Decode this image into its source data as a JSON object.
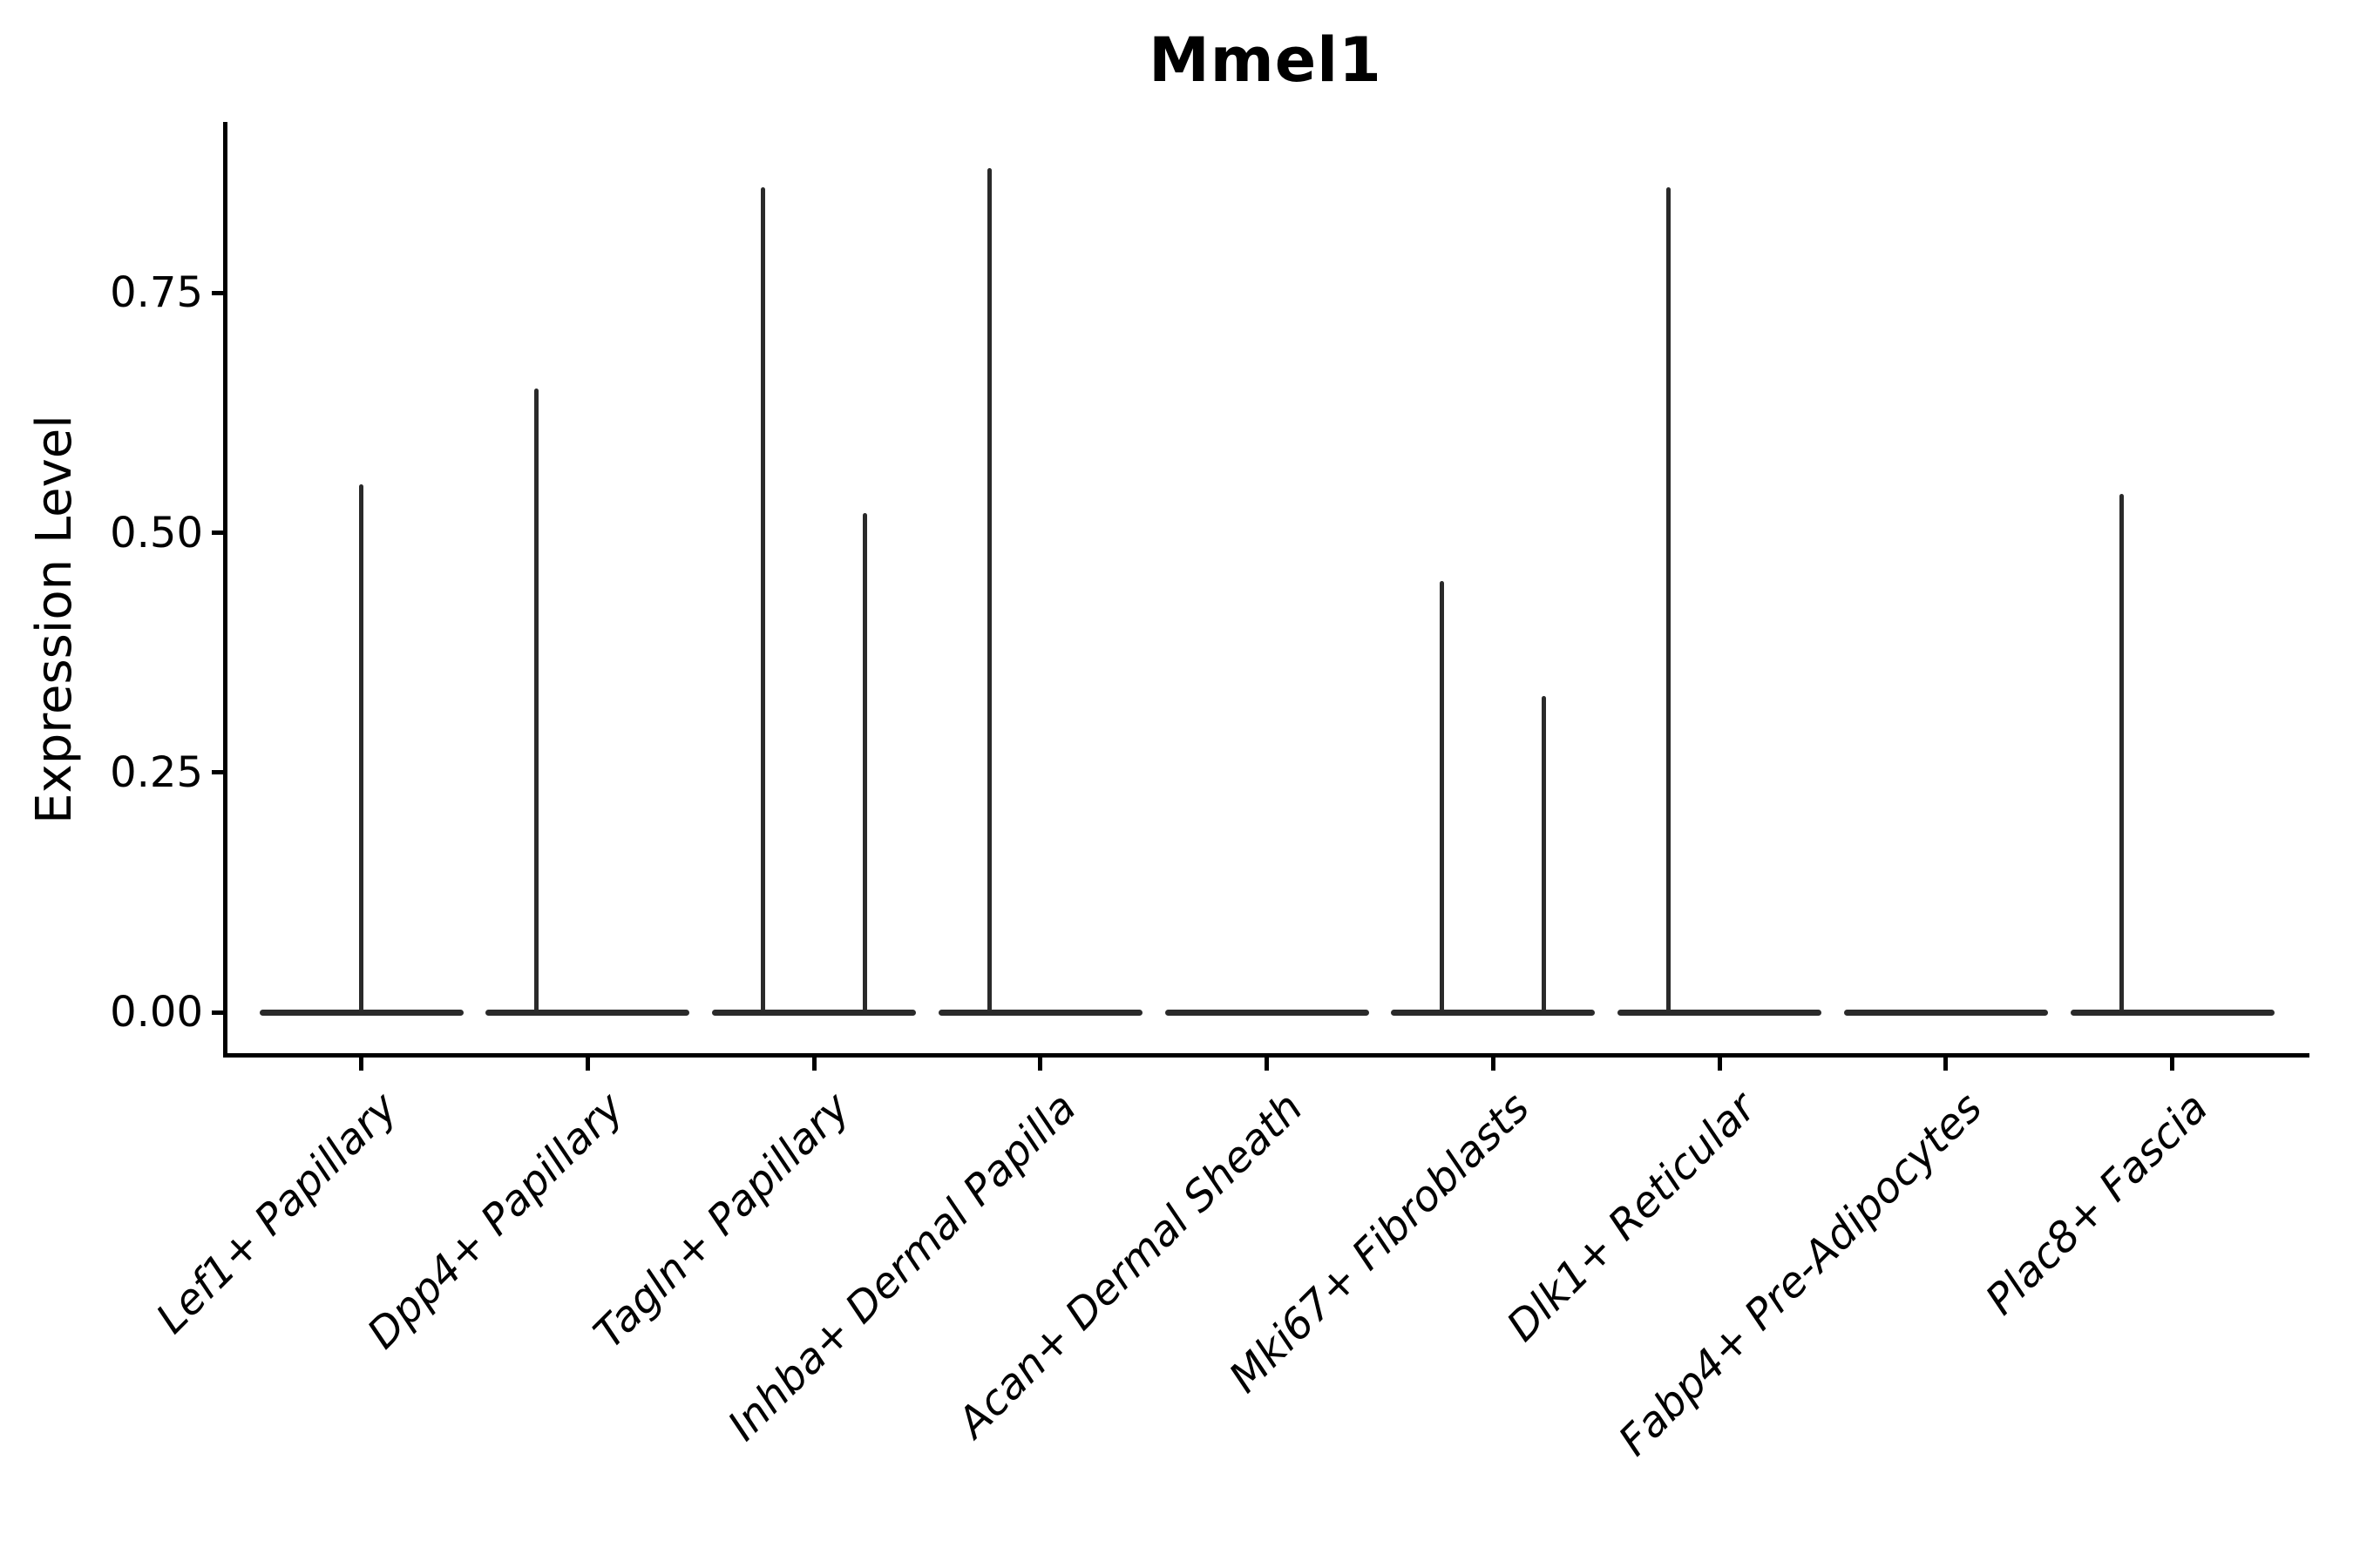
{
  "title": "Mmel1",
  "chart_data": {
    "type": "violin",
    "title": "Mmel1",
    "xlabel": "",
    "ylabel": "Expression Level",
    "ylim": [
      0,
      0.93
    ],
    "yticks": [
      0,
      0.25,
      0.5,
      0.75
    ],
    "ytick_labels": [
      "0.00",
      "0.25",
      "0.50",
      "0.75"
    ],
    "grid": "off",
    "legend": "none",
    "categories": [
      "Lef1+ Papillary",
      "Dpp4+ Papillary",
      "Tagln+ Papillary",
      "Inhba+ Dermal Papilla",
      "Acan+ Dermal Sheath",
      "Mki67+ Fibroblasts",
      "Dlk1+ Reticular",
      "Fabp4+ Pre-Adipocytes",
      "Plac8+ Fascia"
    ],
    "violins": [
      {
        "category": "Lef1+ Papillary",
        "baseline_value": 0.0,
        "spikes": [
          {
            "position": "center",
            "max_expression": 0.55
          }
        ]
      },
      {
        "category": "Dpp4+ Papillary",
        "baseline_value": 0.0,
        "spikes": [
          {
            "position": "left",
            "max_expression": 0.65
          }
        ]
      },
      {
        "category": "Tagln+ Papillary",
        "baseline_value": 0.0,
        "spikes": [
          {
            "position": "left",
            "max_expression": 0.86
          },
          {
            "position": "right",
            "max_expression": 0.52
          }
        ]
      },
      {
        "category": "Inhba+ Dermal Papilla",
        "baseline_value": 0.0,
        "spikes": [
          {
            "position": "left",
            "max_expression": 0.88
          }
        ]
      },
      {
        "category": "Acan+ Dermal Sheath",
        "baseline_value": 0.0,
        "spikes": []
      },
      {
        "category": "Mki67+ Fibroblasts",
        "baseline_value": 0.0,
        "spikes": [
          {
            "position": "left",
            "max_expression": 0.45
          },
          {
            "position": "right",
            "max_expression": 0.33
          }
        ]
      },
      {
        "category": "Dlk1+ Reticular",
        "baseline_value": 0.0,
        "spikes": [
          {
            "position": "left",
            "max_expression": 0.86
          }
        ]
      },
      {
        "category": "Fabp4+ Pre-Adipocytes",
        "baseline_value": 0.0,
        "spikes": []
      },
      {
        "category": "Plac8+ Fascia",
        "baseline_value": 0.0,
        "spikes": [
          {
            "position": "left",
            "max_expression": 0.54
          }
        ]
      }
    ],
    "colors": {
      "violin_stroke": "#2a2a2a",
      "axis": "#000000",
      "text": "#000000",
      "background": "#ffffff"
    }
  }
}
